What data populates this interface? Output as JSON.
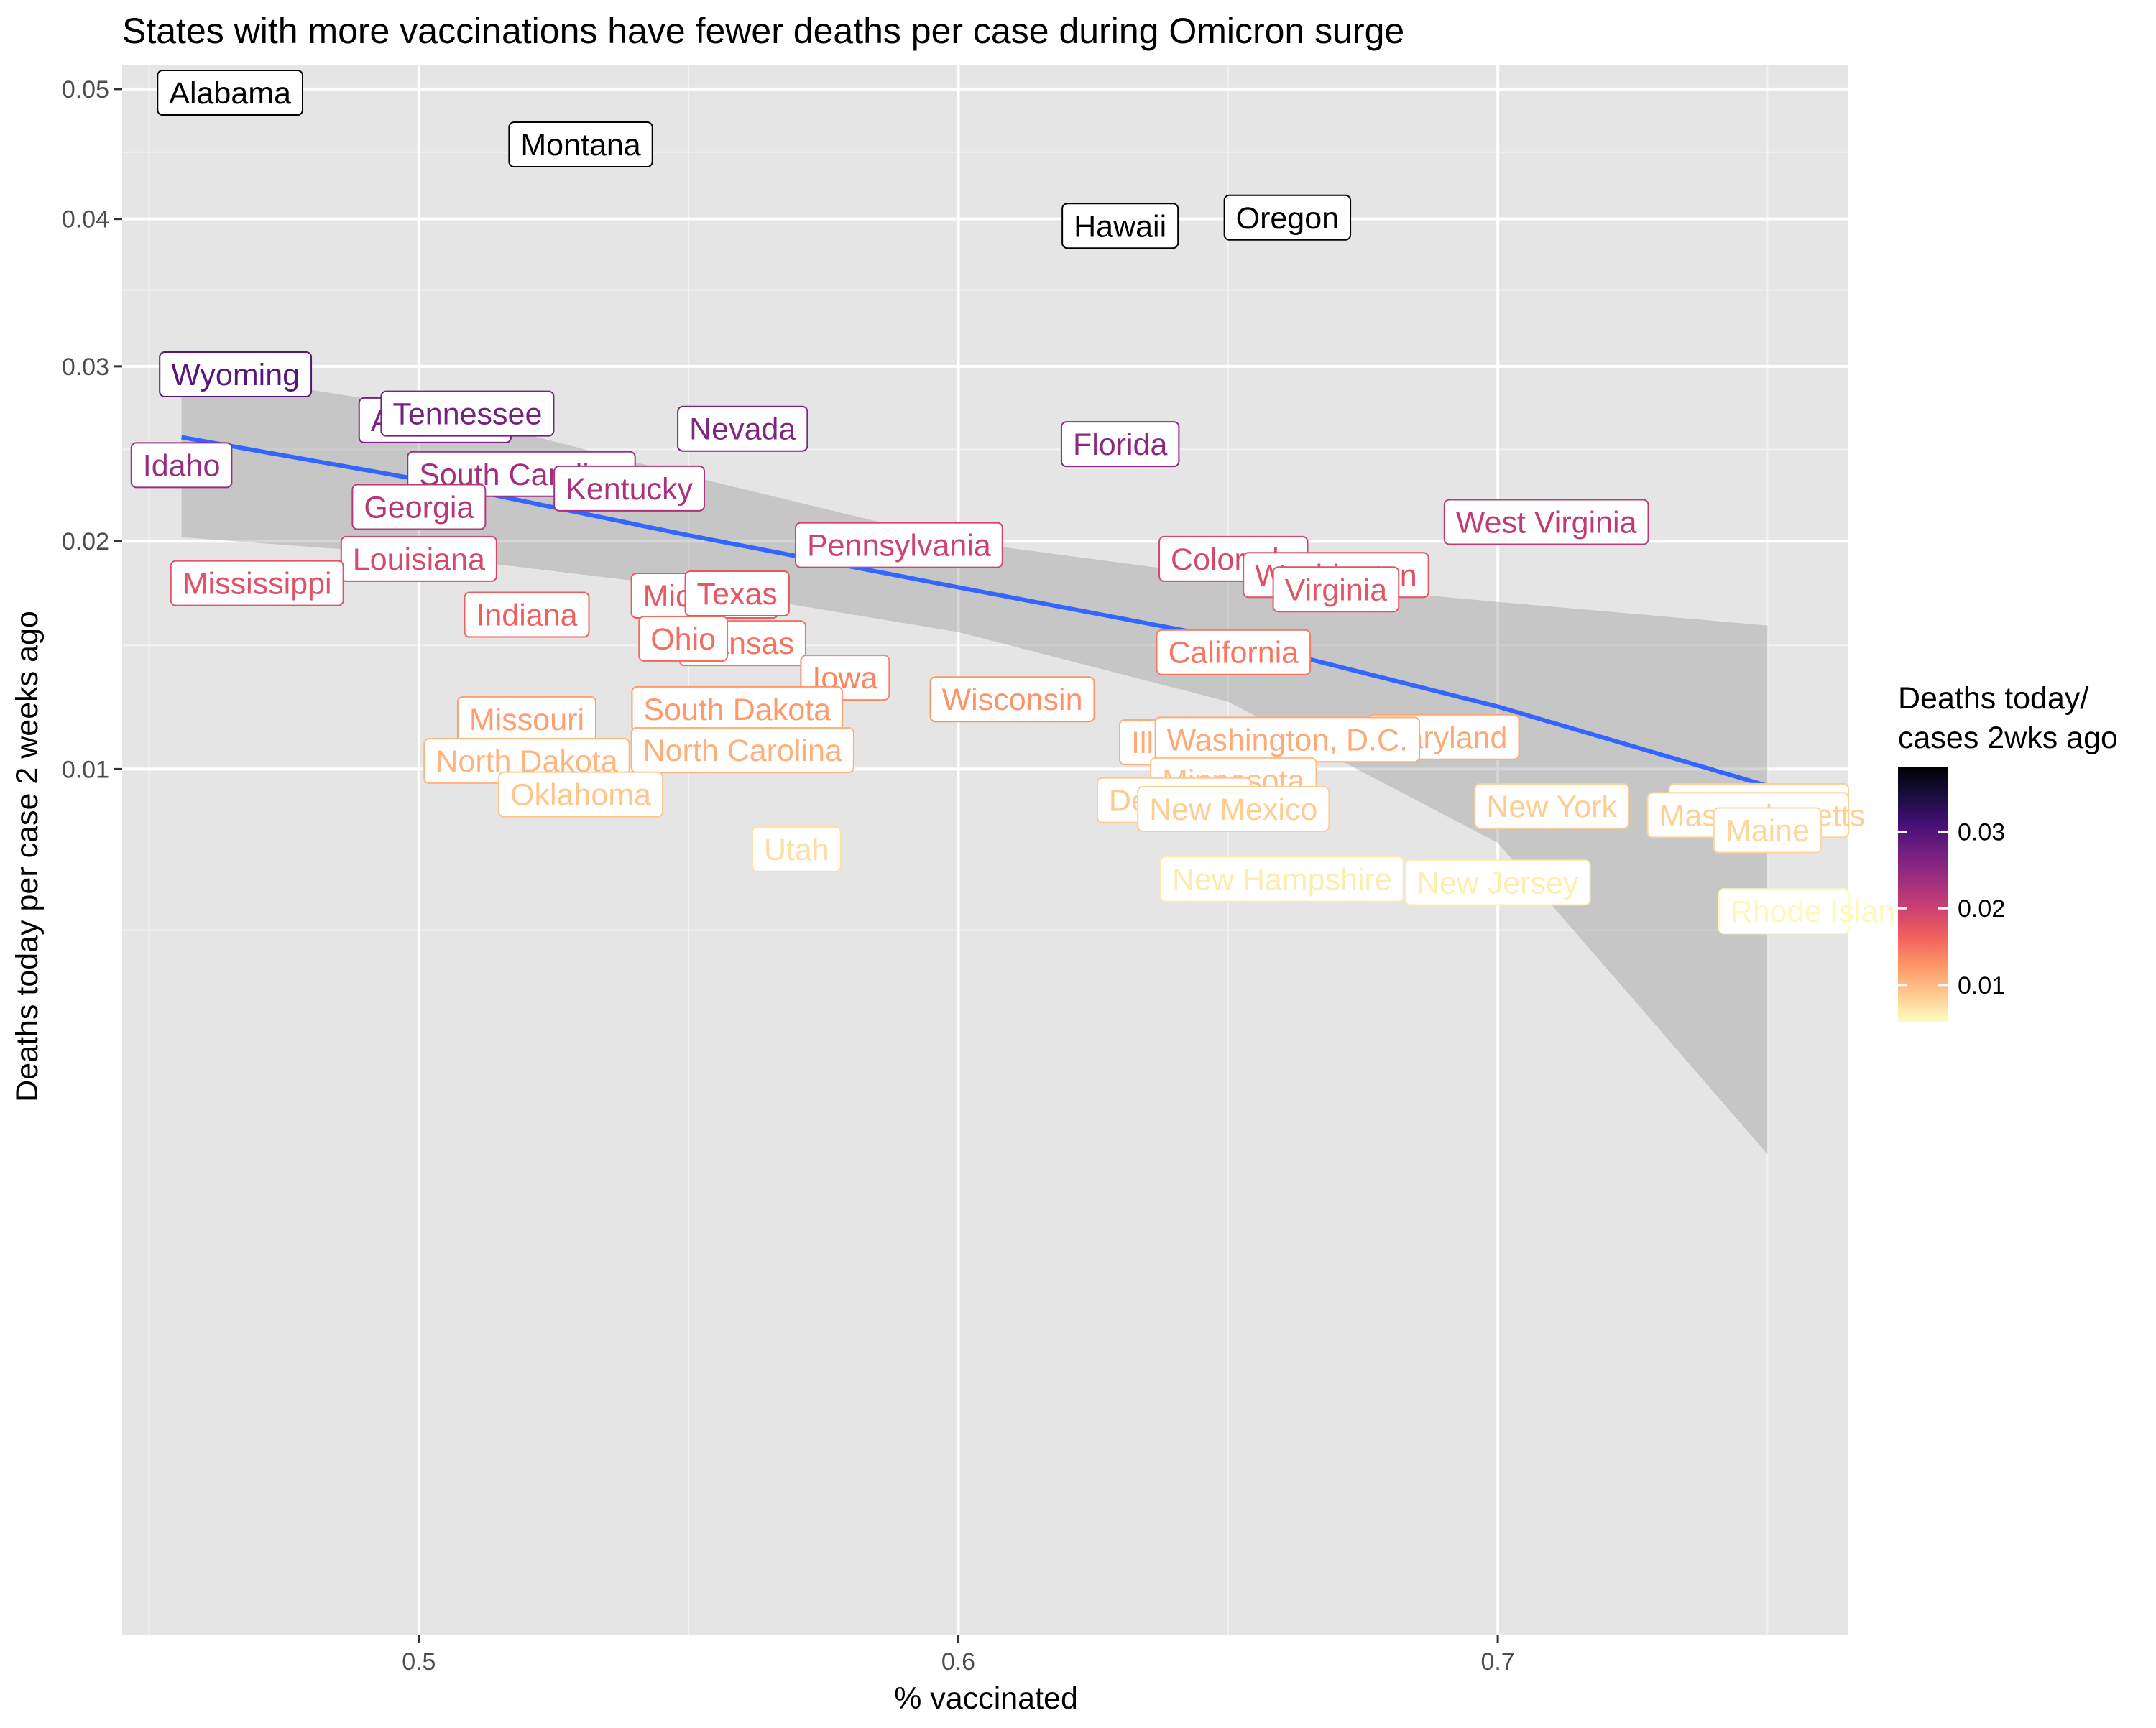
{
  "chart_data": {
    "type": "scatter",
    "title": "States with more vaccinations have fewer deaths per case during Omicron surge",
    "xlabel": "% vaccinated",
    "ylabel": "Deaths today per case 2 weeks ago",
    "x_ticks": [
      0.5,
      0.6,
      0.7
    ],
    "y_ticks": [
      0.01,
      0.02,
      0.03,
      0.04,
      0.05
    ],
    "y_tick_labels": [
      "0.01",
      "0.02",
      "0.03",
      "0.04",
      "0.05"
    ],
    "y_minor_gridlines": [
      0.005,
      0.015,
      0.025,
      0.035,
      0.045
    ],
    "xlim": [
      0.445,
      0.765
    ],
    "ylim": [
      -0.0033,
      0.052
    ],
    "y_scale": "sqrt",
    "grid": true,
    "legend": {
      "title_line1": "Deaths today/",
      "title_line2": "cases 2wks ago",
      "placement": "right",
      "ticks": [
        0.01,
        0.02,
        0.03
      ],
      "tick_labels": [
        "0.01",
        "0.02",
        "0.03"
      ],
      "range": [
        0.0052,
        0.0385
      ],
      "colormap": "magma (reversed)",
      "stops": [
        "#FCFDBF",
        "#FEC98D",
        "#FD9567",
        "#F1605D",
        "#CD4071",
        "#9E2F7F",
        "#721F81",
        "#440F76",
        "#180F3D",
        "#000004"
      ]
    },
    "points": [
      {
        "state": "Alabama",
        "x": 0.465,
        "y": 0.0497
      },
      {
        "state": "Montana",
        "x": 0.53,
        "y": 0.0456
      },
      {
        "state": "Hawaii",
        "x": 0.63,
        "y": 0.0395
      },
      {
        "state": "Oregon",
        "x": 0.661,
        "y": 0.0401
      },
      {
        "state": "Wyoming",
        "x": 0.466,
        "y": 0.0295
      },
      {
        "state": "Arkansas",
        "x": 0.503,
        "y": 0.0267
      },
      {
        "state": "Tennessee",
        "x": 0.509,
        "y": 0.0271
      },
      {
        "state": "Nevada",
        "x": 0.56,
        "y": 0.0262
      },
      {
        "state": "Florida",
        "x": 0.63,
        "y": 0.0253
      },
      {
        "state": "Idaho",
        "x": 0.456,
        "y": 0.0241
      },
      {
        "state": "South Carolina",
        "x": 0.519,
        "y": 0.0236
      },
      {
        "state": "Kentucky",
        "x": 0.539,
        "y": 0.0228
      },
      {
        "state": "Georgia",
        "x": 0.5,
        "y": 0.0218
      },
      {
        "state": "West Virginia",
        "x": 0.709,
        "y": 0.021
      },
      {
        "state": "Pennsylvania",
        "x": 0.589,
        "y": 0.0198
      },
      {
        "state": "Louisiana",
        "x": 0.5,
        "y": 0.0191
      },
      {
        "state": "Colorado",
        "x": 0.651,
        "y": 0.0191
      },
      {
        "state": "Washington",
        "x": 0.67,
        "y": 0.0183
      },
      {
        "state": "Mississippi",
        "x": 0.47,
        "y": 0.0179
      },
      {
        "state": "Virginia",
        "x": 0.67,
        "y": 0.0176
      },
      {
        "state": "Michigan",
        "x": 0.553,
        "y": 0.0173
      },
      {
        "state": "Texas",
        "x": 0.559,
        "y": 0.0174
      },
      {
        "state": "Indiana",
        "x": 0.52,
        "y": 0.0164
      },
      {
        "state": "Kansas",
        "x": 0.56,
        "y": 0.0151
      },
      {
        "state": "Ohio",
        "x": 0.549,
        "y": 0.0153
      },
      {
        "state": "California",
        "x": 0.651,
        "y": 0.0147
      },
      {
        "state": "Iowa",
        "x": 0.579,
        "y": 0.0136
      },
      {
        "state": "Wisconsin",
        "x": 0.61,
        "y": 0.0127
      },
      {
        "state": "South Dakota",
        "x": 0.559,
        "y": 0.0123
      },
      {
        "state": "Missouri",
        "x": 0.52,
        "y": 0.0119
      },
      {
        "state": "Maryland",
        "x": 0.69,
        "y": 0.0112
      },
      {
        "state": "Illinois",
        "x": 0.64,
        "y": 0.011
      },
      {
        "state": "Washington, D.C.",
        "x": 0.661,
        "y": 0.0111
      },
      {
        "state": "North Carolina",
        "x": 0.56,
        "y": 0.0107
      },
      {
        "state": "North Dakota",
        "x": 0.52,
        "y": 0.0103
      },
      {
        "state": "Minnesota",
        "x": 0.651,
        "y": 0.0096
      },
      {
        "state": "Oklahoma",
        "x": 0.53,
        "y": 0.0091
      },
      {
        "state": "Delaware",
        "x": 0.64,
        "y": 0.0089
      },
      {
        "state": "New York",
        "x": 0.71,
        "y": 0.0087
      },
      {
        "state": "Connecticut",
        "x": 0.749,
        "y": 0.0087
      },
      {
        "state": "New Mexico",
        "x": 0.651,
        "y": 0.0086
      },
      {
        "state": "Massachusetts",
        "x": 0.749,
        "y": 0.0084
      },
      {
        "state": "Maine",
        "x": 0.75,
        "y": 0.0079
      },
      {
        "state": "Utah",
        "x": 0.57,
        "y": 0.0073
      },
      {
        "state": "New Hampshire",
        "x": 0.66,
        "y": 0.0064
      },
      {
        "state": "New Jersey",
        "x": 0.7,
        "y": 0.0063
      },
      {
        "state": "Rhode Island",
        "x": 0.76,
        "y": 0.0055
      }
    ],
    "trend": {
      "method": "smooth",
      "color": "#3366FF",
      "band_color": "#999999",
      "x": [
        0.456,
        0.5,
        0.55,
        0.6,
        0.65,
        0.7,
        0.75
      ],
      "y": [
        0.0257,
        0.0233,
        0.0203,
        0.0177,
        0.0153,
        0.0124,
        0.0094
      ],
      "lower": [
        0.0202,
        0.0193,
        0.0177,
        0.0156,
        0.0126,
        0.0075,
        0.0009
      ],
      "upper": [
        0.0298,
        0.0275,
        0.0235,
        0.02,
        0.0182,
        0.017,
        0.0159
      ]
    }
  }
}
